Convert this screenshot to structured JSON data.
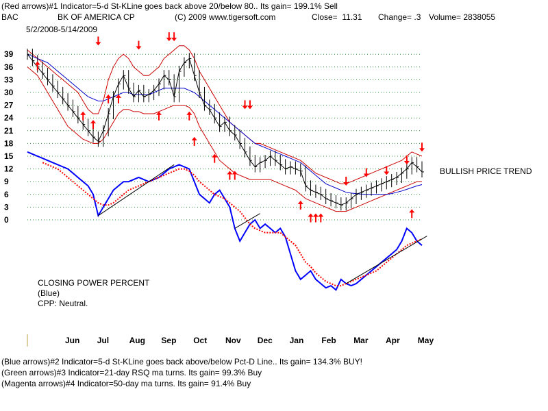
{
  "header": {
    "line1": "(Red arrows)#1 Indicator=5-d St-KLine goes back above 20/below 80.. Its gain= 199.1% Sell",
    "ticker": "BAC",
    "company": "BK OF AMERICA CP",
    "copyright": "(C) 2009 www.tigersoft.com",
    "close": "Close=  11.31",
    "change": "Change= .3",
    "volume": "Volume= 2838055",
    "daterange": "5/2/2008-5/14/2009"
  },
  "annotations": {
    "trend": "BULLISH PRICE TREND",
    "cpp_title": "CLOSING POWER PERCENT",
    "cpp_color": "(Blue)",
    "cpp_status": "CPP: Neutral."
  },
  "footer": {
    "line1": "(Blue arrows)#2 Indicator=5-d St-KLine goes back above/below Pct-D Line.. Its gain= 134.3% BUY!",
    "line2": "(Green arrows)#3 Indicator=21-day RSQ ma turns. Its gain= 99.3% Buy",
    "line3": "(Magenta arrows)#4 Indicator=50-day ma turns. Its gain= 91.4% Buy"
  },
  "chart_data": {
    "type": "line",
    "y_ticks": [
      0,
      3,
      6,
      9,
      12,
      15,
      18,
      21,
      24,
      27,
      30,
      33,
      36,
      39
    ],
    "ylim": [
      0,
      40
    ],
    "months": [
      "Jun",
      "Jul",
      "Aug",
      "Sep",
      "Oct",
      "Nov",
      "Dec",
      "Jan",
      "Feb",
      "Mar",
      "Apr",
      "May"
    ],
    "grid": "dotted-horizontal",
    "colors": {
      "price": "#000000",
      "bands": "#cc0000",
      "ma_blue": "#0000cc",
      "cpp": "#0000ff",
      "cpp_ma": "#ff0000",
      "arrows": "#ff0000"
    },
    "price": [
      39,
      37.5,
      36,
      34.5,
      33,
      31.5,
      30,
      28.5,
      27,
      25.5,
      24,
      22.5,
      21,
      19.5,
      18.5,
      21,
      25,
      29,
      32,
      34,
      31,
      29,
      30.5,
      29,
      29.5,
      30.5,
      32,
      34,
      33,
      29,
      35,
      37,
      38,
      34,
      30,
      27,
      26,
      24,
      22,
      23,
      21,
      20,
      18,
      16,
      14,
      12.5,
      13.5,
      14,
      15,
      14,
      13,
      12,
      12.5,
      12,
      11.5,
      8,
      7,
      6.5,
      6,
      5,
      4.5,
      4,
      3.5,
      4,
      5,
      6,
      6.5,
      7,
      7.5,
      8,
      8.5,
      9,
      9.5,
      10,
      11,
      12,
      13.5,
      12.5,
      11.3
    ],
    "upper_band": [
      40,
      39,
      38,
      37,
      36,
      35,
      34,
      33,
      32,
      31,
      30,
      28,
      26,
      25,
      25,
      28,
      33,
      36,
      38,
      39,
      38,
      36,
      35,
      34,
      34,
      35,
      36,
      38,
      39,
      40,
      41,
      41,
      40,
      38,
      35,
      33,
      31,
      29,
      27,
      25,
      23,
      22,
      21,
      20,
      19,
      18,
      18,
      17.5,
      17,
      16.5,
      16,
      15.5,
      15,
      14.5,
      14,
      13,
      12,
      11,
      10.5,
      10,
      9.5,
      9,
      8.5,
      8.5,
      9,
      9.5,
      10,
      10.5,
      11,
      11.5,
      12,
      12.5,
      13,
      13.5,
      14,
      15,
      16,
      15.5,
      15
    ],
    "lower_band": [
      36,
      35,
      34,
      32,
      30,
      28,
      26,
      24,
      22,
      21,
      20,
      19,
      18.5,
      18,
      18,
      19,
      21,
      23,
      25,
      26,
      26,
      25.5,
      25.5,
      25,
      25,
      25,
      25.5,
      26,
      26.5,
      27,
      27,
      27,
      26.5,
      25,
      22,
      20,
      18,
      16,
      14,
      13,
      12,
      11,
      10.5,
      10,
      9.5,
      9.5,
      9.5,
      9.5,
      9.5,
      9,
      8.5,
      8,
      7.5,
      7,
      6,
      5,
      4.5,
      4,
      3.5,
      3,
      2.5,
      2,
      2,
      2,
      2.5,
      3,
      3.5,
      4,
      4.5,
      5,
      5.5,
      6,
      6.5,
      7,
      7.5,
      8,
      8.5,
      9,
      9
    ],
    "ma_blue": [
      39,
      38.5,
      38,
      37.5,
      37,
      36,
      35,
      34,
      33,
      32,
      31,
      30,
      29,
      28.5,
      28,
      28,
      28.5,
      29,
      29.5,
      30,
      30,
      29.5,
      29.5,
      29.5,
      29.5,
      30,
      30.5,
      31,
      31,
      31,
      31,
      31,
      30.5,
      30,
      29,
      28,
      27,
      26,
      25,
      24,
      23,
      22,
      21,
      20,
      19,
      18,
      17.5,
      17,
      16.5,
      16,
      15.5,
      15,
      14.5,
      14,
      13.5,
      12.5,
      11.5,
      10.5,
      9.5,
      8.5,
      8,
      7.5,
      7,
      6.5,
      6.3,
      6.2,
      6.1,
      6,
      6,
      6,
      6,
      6,
      6.2,
      6.5,
      6.8,
      7.2,
      7.6,
      8,
      8.3
    ],
    "cpp": [
      16,
      15.5,
      15,
      14.5,
      14,
      13.5,
      13,
      12.5,
      12,
      11,
      10,
      9,
      8,
      6,
      1,
      3,
      5,
      7,
      8,
      9,
      9,
      9.5,
      10,
      9.5,
      9,
      9.5,
      10,
      11,
      12,
      12.5,
      13,
      12.5,
      12,
      9,
      6,
      5,
      4,
      6,
      7,
      5,
      3,
      -2,
      -5,
      -3,
      -1,
      0,
      -2,
      -1,
      -2,
      -3,
      -2,
      -4,
      -8,
      -12,
      -14,
      -13,
      -12,
      -14,
      -15,
      -16,
      -15.5,
      -16.5,
      -14,
      -15,
      -15.5,
      -15,
      -14,
      -13,
      -12,
      -11,
      -10,
      -9,
      -8,
      -7,
      -5,
      -2,
      -3,
      -5,
      -6
    ],
    "cpp_ma": [
      null,
      null,
      null,
      13.5,
      13,
      12.5,
      12,
      11,
      10,
      9,
      8,
      7,
      6,
      5,
      4,
      3.5,
      3.5,
      4,
      5,
      6,
      7,
      7.5,
      8,
      8.5,
      9,
      9.5,
      10,
      10.5,
      11,
      11.5,
      12,
      12,
      11.5,
      10.5,
      9,
      8,
      7,
      6,
      5.5,
      5,
      4,
      3,
      2,
      0.5,
      -1,
      -2,
      -2.5,
      -3,
      -3,
      -3,
      -3,
      -4,
      -5,
      -6,
      -8,
      -10,
      -11,
      -12.5,
      -13.5,
      -14.5,
      -15,
      -15.5,
      -15.5,
      -15,
      -14.5,
      -14,
      -13.5,
      -13,
      -12.5,
      -12,
      -11,
      -10,
      -9,
      -8,
      -7,
      -6,
      -5.5,
      -5,
      -4.5
    ],
    "cpp_ma_start": 3,
    "arrows_down": [
      [
        14,
        42.2
      ],
      [
        22,
        41.2
      ],
      [
        28,
        43.2
      ],
      [
        29,
        43.2
      ],
      [
        43,
        27.2
      ],
      [
        44,
        27.2
      ],
      [
        63,
        9.2
      ],
      [
        67,
        11.2
      ],
      [
        71,
        11.7
      ],
      [
        75,
        14.2
      ],
      [
        78,
        17.2
      ]
    ],
    "arrows_up": [
      [
        2,
        36.2
      ],
      [
        11,
        24.4
      ],
      [
        13,
        22.4
      ],
      [
        16,
        28.4
      ],
      [
        18,
        28.4
      ],
      [
        26,
        24.4
      ],
      [
        32,
        24.4
      ],
      [
        33,
        18.4
      ],
      [
        37,
        14.4
      ],
      [
        40,
        10.4
      ],
      [
        41,
        10.4
      ],
      [
        54,
        3.4
      ],
      [
        56,
        0.4
      ],
      [
        57,
        0.4
      ],
      [
        58,
        0.4
      ],
      [
        76,
        1.4
      ]
    ]
  }
}
